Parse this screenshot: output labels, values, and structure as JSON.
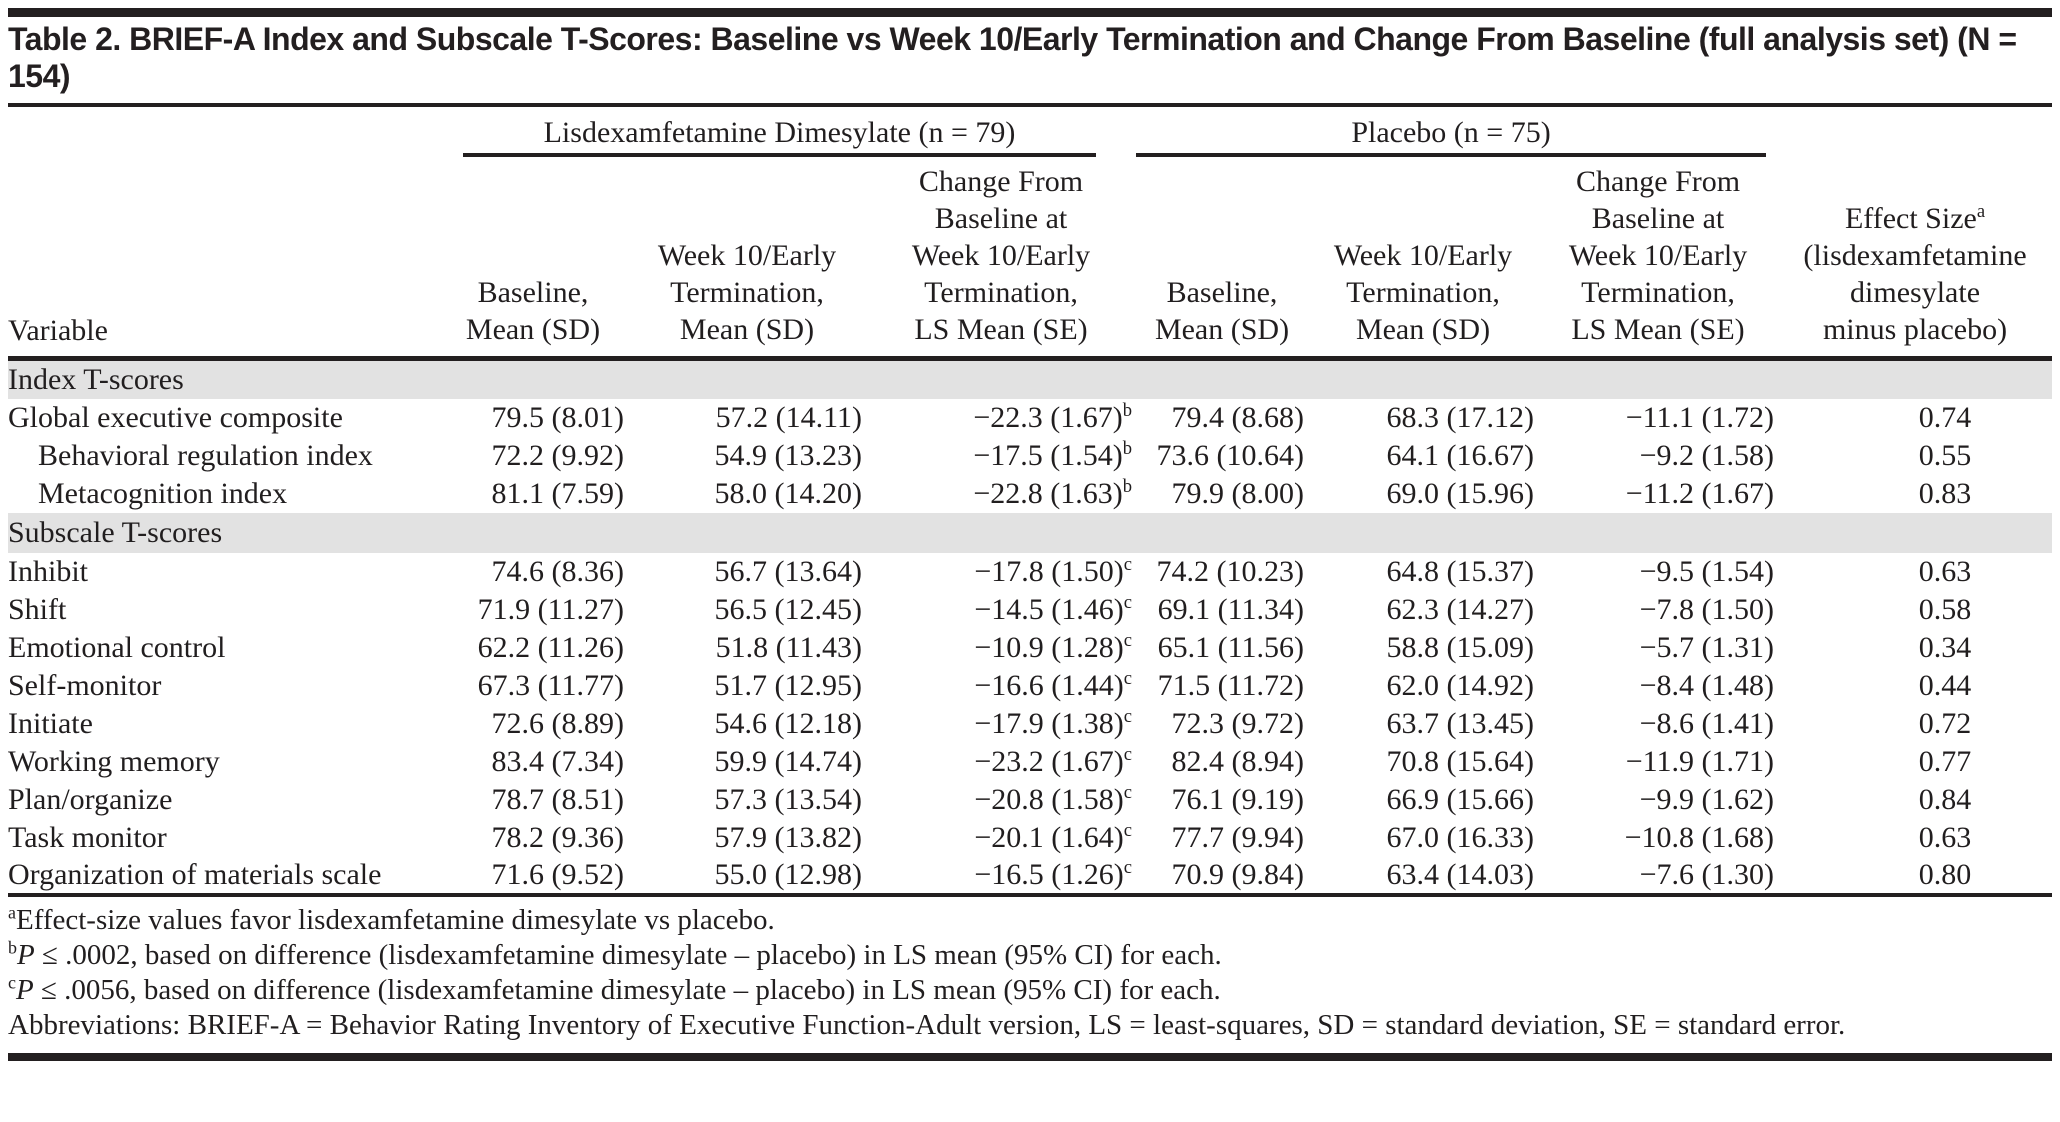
{
  "title": "Table 2. BRIEF-A Index and Subscale T-Scores: Baseline vs Week 10/Early Termination and Change From Baseline (full analysis set) (N = 154)",
  "table": {
    "group_headers": {
      "ldx": "Lisdexamfetamine Dimesylate (n = 79)",
      "placebo": "Placebo (n = 75)"
    },
    "columns": {
      "variable": "Variable",
      "baseline": [
        "Baseline,",
        "Mean (SD)"
      ],
      "week10": [
        "Week 10/Early",
        "Termination,",
        "Mean (SD)"
      ],
      "change": [
        "Change From",
        "Baseline at",
        "Week 10/Early",
        "Termination,",
        "LS Mean (SE)"
      ],
      "effect_size_label": "Effect Size",
      "effect_size_sup": "a",
      "effect_size_sub": [
        "(lisdexamfetamine",
        "dimesylate",
        "minus placebo)"
      ]
    },
    "sections": [
      {
        "label": "Index T-scores",
        "rows": [
          {
            "variable": "Global executive composite",
            "ldx_baseline": "79.5 (8.01)",
            "ldx_week10": "57.2 (14.11)",
            "ldx_change": "−22.3 (1.67)",
            "ldx_change_sup": "b",
            "pbo_baseline": "79.4 (8.68)",
            "pbo_week10": "68.3 (17.12)",
            "pbo_change": "−11.1 (1.72)",
            "effect_size": "0.74"
          },
          {
            "variable": "Behavioral regulation index",
            "ldx_baseline": "72.2 (9.92)",
            "ldx_week10": "54.9 (13.23)",
            "ldx_change": "−17.5 (1.54)",
            "ldx_change_sup": "b",
            "pbo_baseline": "73.6 (10.64)",
            "pbo_week10": "64.1 (16.67)",
            "pbo_change": "−9.2 (1.58)",
            "effect_size": "0.55"
          },
          {
            "variable": "Metacognition index",
            "ldx_baseline": "81.1 (7.59)",
            "ldx_week10": "58.0 (14.20)",
            "ldx_change": "−22.8 (1.63)",
            "ldx_change_sup": "b",
            "pbo_baseline": "79.9 (8.00)",
            "pbo_week10": "69.0 (15.96)",
            "pbo_change": "−11.2 (1.67)",
            "effect_size": "0.83"
          }
        ]
      },
      {
        "label": "Subscale T-scores",
        "rows": [
          {
            "variable": "Inhibit",
            "ldx_baseline": "74.6 (8.36)",
            "ldx_week10": "56.7 (13.64)",
            "ldx_change": "−17.8 (1.50)",
            "ldx_change_sup": "c",
            "pbo_baseline": "74.2 (10.23)",
            "pbo_week10": "64.8 (15.37)",
            "pbo_change": "−9.5 (1.54)",
            "effect_size": "0.63"
          },
          {
            "variable": "Shift",
            "ldx_baseline": "71.9 (11.27)",
            "ldx_week10": "56.5 (12.45)",
            "ldx_change": "−14.5 (1.46)",
            "ldx_change_sup": "c",
            "pbo_baseline": "69.1 (11.34)",
            "pbo_week10": "62.3 (14.27)",
            "pbo_change": "−7.8 (1.50)",
            "effect_size": "0.58"
          },
          {
            "variable": "Emotional control",
            "ldx_baseline": "62.2 (11.26)",
            "ldx_week10": "51.8 (11.43)",
            "ldx_change": "−10.9 (1.28)",
            "ldx_change_sup": "c",
            "pbo_baseline": "65.1 (11.56)",
            "pbo_week10": "58.8 (15.09)",
            "pbo_change": "−5.7 (1.31)",
            "effect_size": "0.34"
          },
          {
            "variable": "Self-monitor",
            "ldx_baseline": "67.3 (11.77)",
            "ldx_week10": "51.7 (12.95)",
            "ldx_change": "−16.6 (1.44)",
            "ldx_change_sup": "c",
            "pbo_baseline": "71.5 (11.72)",
            "pbo_week10": "62.0 (14.92)",
            "pbo_change": "−8.4 (1.48)",
            "effect_size": "0.44"
          },
          {
            "variable": "Initiate",
            "ldx_baseline": "72.6 (8.89)",
            "ldx_week10": "54.6 (12.18)",
            "ldx_change": "−17.9 (1.38)",
            "ldx_change_sup": "c",
            "pbo_baseline": "72.3 (9.72)",
            "pbo_week10": "63.7 (13.45)",
            "pbo_change": "−8.6 (1.41)",
            "effect_size": "0.72"
          },
          {
            "variable": "Working memory",
            "ldx_baseline": "83.4 (7.34)",
            "ldx_week10": "59.9 (14.74)",
            "ldx_change": "−23.2 (1.67)",
            "ldx_change_sup": "c",
            "pbo_baseline": "82.4 (8.94)",
            "pbo_week10": "70.8 (15.64)",
            "pbo_change": "−11.9 (1.71)",
            "effect_size": "0.77"
          },
          {
            "variable": "Plan/organize",
            "ldx_baseline": "78.7 (8.51)",
            "ldx_week10": "57.3 (13.54)",
            "ldx_change": "−20.8 (1.58)",
            "ldx_change_sup": "c",
            "pbo_baseline": "76.1 (9.19)",
            "pbo_week10": "66.9 (15.66)",
            "pbo_change": "−9.9 (1.62)",
            "effect_size": "0.84"
          },
          {
            "variable": "Task monitor",
            "ldx_baseline": "78.2 (9.36)",
            "ldx_week10": "57.9 (13.82)",
            "ldx_change": "−20.1 (1.64)",
            "ldx_change_sup": "c",
            "pbo_baseline": "77.7 (9.94)",
            "pbo_week10": "67.0 (16.33)",
            "pbo_change": "−10.8 (1.68)",
            "effect_size": "0.63"
          },
          {
            "variable": "Organization of materials scale",
            "ldx_baseline": "71.6 (9.52)",
            "ldx_week10": "55.0 (12.98)",
            "ldx_change": "−16.5 (1.26)",
            "ldx_change_sup": "c",
            "pbo_baseline": "70.9 (9.84)",
            "pbo_week10": "63.4 (14.03)",
            "pbo_change": "−7.6 (1.30)",
            "effect_size": "0.80"
          }
        ]
      }
    ]
  },
  "footnotes": [
    {
      "marker": "a",
      "italic": "",
      "text": "Effect-size values favor lisdexamfetamine dimesylate vs placebo."
    },
    {
      "marker": "b",
      "italic": "P",
      "text": " ≤ .0002, based on difference (lisdexamfetamine dimesylate – placebo) in LS mean (95% CI) for each."
    },
    {
      "marker": "c",
      "italic": "P",
      "text": " ≤ .0056, based on difference (lisdexamfetamine dimesylate – placebo) in LS mean (95% CI) for each."
    },
    {
      "marker": "",
      "italic": "",
      "text": "Abbreviations: BRIEF-A = Behavior Rating Inventory of Executive Function-Adult version, LS = least-squares, SD = standard deviation, SE = standard error."
    }
  ]
}
